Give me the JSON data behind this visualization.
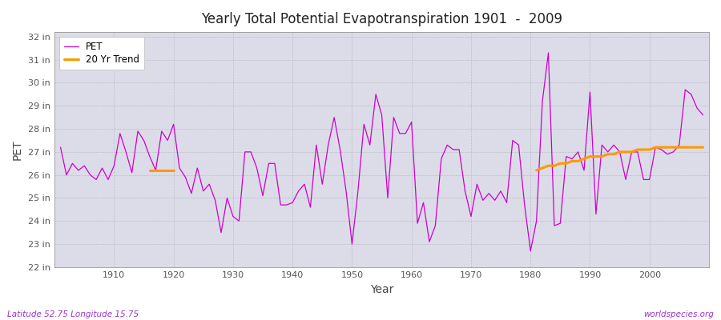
{
  "title": "Yearly Total Potential Evapotranspiration 1901  -  2009",
  "xlabel": "Year",
  "ylabel": "PET",
  "footnote_left": "Latitude 52.75 Longitude 15.75",
  "footnote_right": "worldspecies.org",
  "ylim": [
    22,
    32.2
  ],
  "ytick_labels": [
    "22 in",
    "23 in",
    "24 in",
    "25 in",
    "26 in",
    "27 in",
    "28 in",
    "29 in",
    "30 in",
    "31 in",
    "32 in"
  ],
  "ytick_values": [
    22,
    23,
    24,
    25,
    26,
    27,
    28,
    29,
    30,
    31,
    32
  ],
  "pet_color": "#cc00cc",
  "trend_color": "#ff9900",
  "fig_bg": "#ffffff",
  "plot_bg": "#dcdce8",
  "pet_data_years": [
    1901,
    1902,
    1903,
    1904,
    1905,
    1906,
    1907,
    1908,
    1909,
    1910,
    1911,
    1912,
    1913,
    1914,
    1915,
    1916,
    1917,
    1918,
    1919,
    1920,
    1921,
    1922,
    1923,
    1924,
    1925,
    1926,
    1927,
    1928,
    1929,
    1930,
    1931,
    1932,
    1933,
    1934,
    1935,
    1936,
    1937,
    1938,
    1939,
    1940,
    1941,
    1942,
    1943,
    1944,
    1945,
    1946,
    1947,
    1948,
    1949,
    1950,
    1951,
    1952,
    1953,
    1954,
    1955,
    1956,
    1957,
    1958,
    1959,
    1960,
    1961,
    1962,
    1963,
    1964,
    1965,
    1966,
    1967,
    1968,
    1969,
    1970,
    1971,
    1972,
    1973,
    1974,
    1975,
    1976,
    1977,
    1978,
    1979,
    1980,
    1981,
    1982,
    1983,
    1984,
    1985,
    1986,
    1987,
    1988,
    1989,
    1990,
    1991,
    1992,
    1993,
    1994,
    1995,
    1996,
    1997,
    1998,
    1999,
    2000,
    2001,
    2002,
    2003,
    2004,
    2005,
    2006,
    2007,
    2008,
    2009
  ],
  "pet_data_values": [
    27.2,
    26.0,
    26.5,
    26.2,
    26.4,
    26.0,
    25.8,
    26.3,
    25.8,
    26.4,
    27.8,
    27.0,
    26.1,
    27.9,
    27.5,
    26.8,
    26.2,
    27.9,
    27.5,
    28.2,
    26.3,
    25.9,
    25.2,
    26.3,
    25.3,
    25.6,
    24.9,
    23.5,
    25.0,
    24.2,
    24.0,
    27.0,
    27.0,
    26.3,
    25.1,
    26.5,
    26.5,
    24.7,
    24.7,
    24.8,
    25.3,
    25.6,
    24.6,
    27.3,
    25.6,
    27.3,
    28.5,
    27.1,
    25.3,
    23.0,
    25.3,
    28.2,
    27.3,
    29.5,
    28.6,
    25.0,
    28.5,
    27.8,
    27.8,
    28.3,
    23.9,
    24.8,
    23.1,
    23.8,
    26.7,
    27.3,
    27.1,
    27.1,
    25.3,
    24.2,
    25.6,
    24.9,
    25.2,
    24.9,
    25.3,
    24.8,
    27.5,
    27.3,
    24.7,
    22.7,
    24.0,
    29.2,
    31.3,
    23.8,
    23.9,
    26.8,
    26.7,
    27.0,
    26.2,
    29.6,
    24.3,
    27.3,
    27.0,
    27.3,
    27.0,
    25.8,
    27.0,
    27.0,
    25.8,
    25.8,
    27.2,
    27.1,
    26.9,
    27.0,
    27.3,
    29.7,
    29.5,
    28.9,
    28.6
  ],
  "trend_seg1_years": [
    1916,
    1917,
    1918,
    1919,
    1920
  ],
  "trend_seg1_values": [
    26.2,
    26.2,
    26.2,
    26.2,
    26.2
  ],
  "trend_seg2_years": [
    1981,
    1982,
    1983,
    1984,
    1985,
    1986,
    1987,
    1988,
    1989,
    1990,
    1991,
    1992,
    1993,
    1994,
    1995,
    1996,
    1997,
    1998,
    1999,
    2000,
    2001,
    2002,
    2003,
    2004,
    2005,
    2006,
    2007,
    2008,
    2009
  ],
  "trend_seg2_values": [
    26.2,
    26.3,
    26.4,
    26.4,
    26.5,
    26.5,
    26.6,
    26.6,
    26.7,
    26.8,
    26.8,
    26.8,
    26.9,
    26.9,
    27.0,
    27.0,
    27.0,
    27.1,
    27.1,
    27.1,
    27.2,
    27.2,
    27.2,
    27.2,
    27.2,
    27.2,
    27.2,
    27.2,
    27.2
  ]
}
